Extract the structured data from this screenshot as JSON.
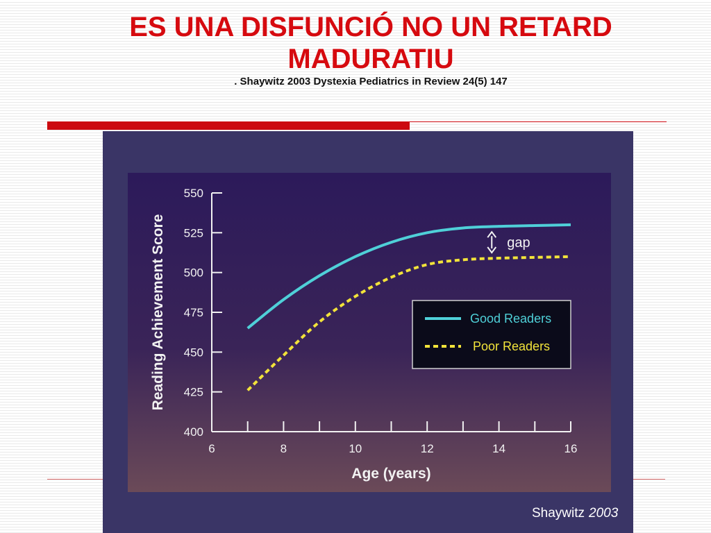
{
  "slide": {
    "title_line1": "ES UNA DISFUNCIÓ NO UN RETARD",
    "title_line2": "MADURATIU",
    "subtitle": ". Shaywitz 2003 Dystexia Pediatrics in Review 24(5) 147",
    "credit_name": "Shaywitz",
    "credit_year": "2003"
  },
  "chart_data": {
    "type": "line",
    "title": "",
    "xlabel": "Age (years)",
    "ylabel": "Reading Achievement Score",
    "xlim": [
      6,
      16
    ],
    "ylim": [
      400,
      550
    ],
    "xticks": [
      6,
      8,
      10,
      12,
      14,
      16
    ],
    "yticks": [
      400,
      425,
      450,
      475,
      500,
      525,
      550
    ],
    "grid": false,
    "legend_position": "center-right",
    "annotation": "gap",
    "series": [
      {
        "name": "Good Readers",
        "color": "#4fd0d8",
        "dash": false,
        "x": [
          7,
          8,
          9,
          10,
          11,
          12,
          13,
          14,
          15,
          16
        ],
        "y": [
          465,
          483,
          498,
          510,
          519,
          525,
          528,
          529,
          529.5,
          530
        ]
      },
      {
        "name": "Poor Readers",
        "color": "#f2e33a",
        "dash": true,
        "x": [
          7,
          8,
          9,
          10,
          11,
          12,
          13,
          14,
          15,
          16
        ],
        "y": [
          426,
          448,
          469,
          485,
          497,
          505,
          508,
          509,
          509.5,
          510
        ]
      }
    ]
  }
}
